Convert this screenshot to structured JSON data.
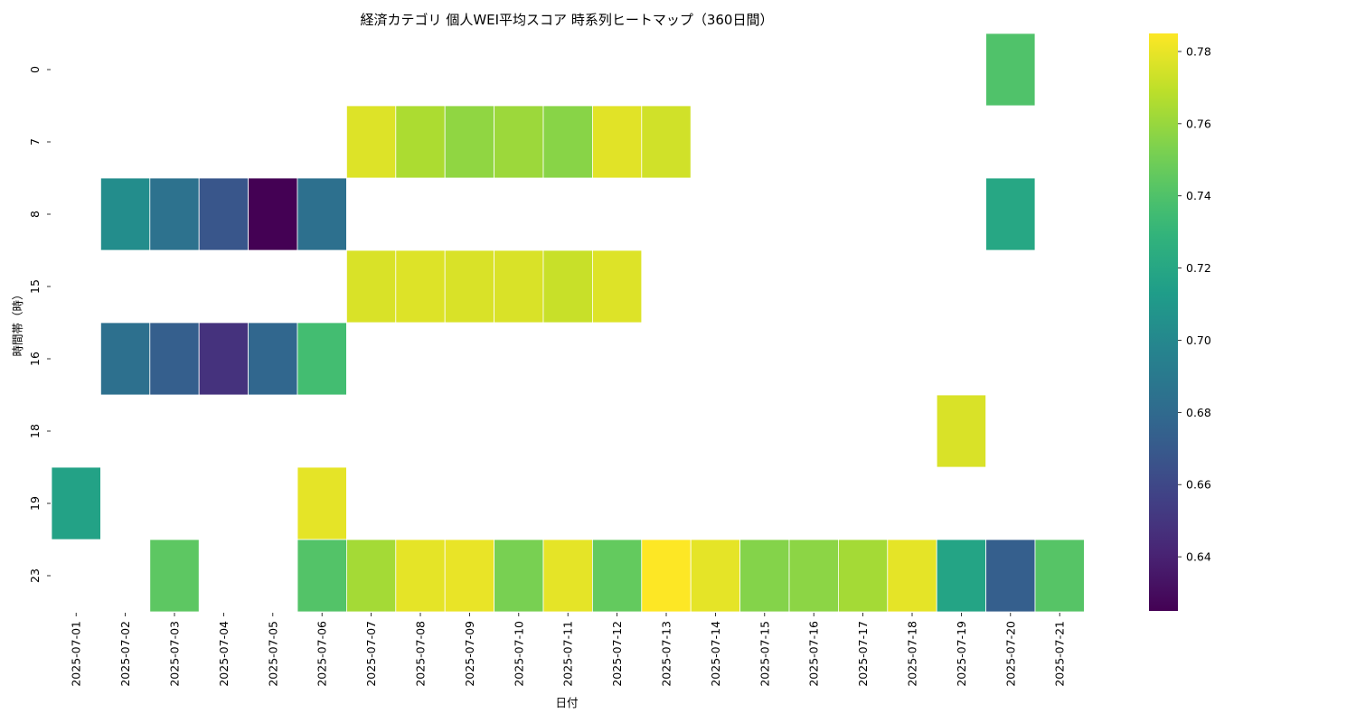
{
  "chart_data": {
    "type": "heatmap",
    "title": "経済カテゴリ 個人WEI平均スコア 時系列ヒートマップ（360日間）",
    "xlabel": "日付",
    "ylabel": "時間帯（時）",
    "x": [
      "2025-07-01",
      "2025-07-02",
      "2025-07-03",
      "2025-07-04",
      "2025-07-05",
      "2025-07-06",
      "2025-07-07",
      "2025-07-08",
      "2025-07-09",
      "2025-07-10",
      "2025-07-11",
      "2025-07-12",
      "2025-07-13",
      "2025-07-14",
      "2025-07-15",
      "2025-07-16",
      "2025-07-17",
      "2025-07-18",
      "2025-07-19",
      "2025-07-20",
      "2025-07-21"
    ],
    "y": [
      "0",
      "7",
      "8",
      "15",
      "16",
      "18",
      "19",
      "23"
    ],
    "values": [
      [
        null,
        null,
        null,
        null,
        null,
        null,
        null,
        null,
        null,
        null,
        null,
        null,
        null,
        null,
        null,
        null,
        null,
        null,
        null,
        0.74,
        null
      ],
      [
        null,
        null,
        null,
        null,
        null,
        null,
        0.777,
        0.765,
        0.758,
        0.761,
        0.756,
        0.778,
        0.774,
        null,
        null,
        null,
        null,
        null,
        null,
        null,
        null
      ],
      [
        null,
        0.703,
        0.685,
        0.668,
        0.625,
        0.684,
        null,
        null,
        null,
        null,
        null,
        null,
        null,
        null,
        null,
        null,
        null,
        null,
        null,
        0.72,
        null
      ],
      [
        null,
        null,
        null,
        null,
        null,
        null,
        0.776,
        0.777,
        0.776,
        0.776,
        0.772,
        0.777,
        null,
        null,
        null,
        null,
        null,
        null,
        null,
        null,
        null
      ],
      [
        null,
        0.684,
        0.673,
        0.648,
        0.678,
        0.736,
        null,
        null,
        null,
        null,
        null,
        null,
        null,
        null,
        null,
        null,
        null,
        null,
        null,
        null,
        null
      ],
      [
        null,
        null,
        null,
        null,
        null,
        null,
        null,
        null,
        null,
        null,
        null,
        null,
        null,
        null,
        null,
        null,
        null,
        null,
        0.776,
        null,
        null
      ],
      [
        0.717,
        null,
        null,
        null,
        null,
        0.779,
        null,
        null,
        null,
        null,
        null,
        null,
        null,
        null,
        null,
        null,
        null,
        null,
        null,
        null,
        null
      ],
      [
        null,
        null,
        0.744,
        null,
        null,
        0.741,
        0.763,
        0.779,
        0.78,
        0.752,
        0.779,
        0.746,
        0.785,
        0.779,
        0.755,
        0.757,
        0.763,
        0.779,
        0.718,
        0.673,
        0.742
      ]
    ],
    "colormap": "viridis",
    "vmin": 0.625,
    "vmax": 0.785,
    "colorbar_ticks": [
      0.64,
      0.66,
      0.68,
      0.7,
      0.72,
      0.74,
      0.76,
      0.78
    ],
    "colorbar_tick_labels": [
      "0.64",
      "0.66",
      "0.68",
      "0.70",
      "0.72",
      "0.74",
      "0.76",
      "0.78"
    ]
  }
}
